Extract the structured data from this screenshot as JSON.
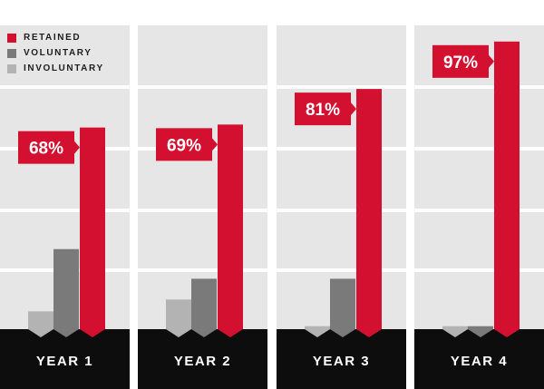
{
  "chart_data": {
    "type": "bar",
    "categories": [
      "YEAR 1",
      "YEAR 2",
      "YEAR 3",
      "YEAR 4"
    ],
    "series": [
      {
        "name": "RETAINED",
        "values": [
          68,
          69,
          81,
          97
        ]
      },
      {
        "name": "VOLUNTARY",
        "values": [
          27,
          17,
          17,
          1
        ]
      },
      {
        "name": "INVOLUNTARY",
        "values": [
          6,
          10,
          1,
          1
        ]
      }
    ],
    "data_labels": [
      "68%",
      "69%",
      "81%",
      "97%"
    ],
    "ylim": [
      0,
      100
    ],
    "grid": true,
    "legend_position": "top-left"
  },
  "legend": [
    {
      "label": "RETAINED",
      "color": "#d3102f"
    },
    {
      "label": "VOLUNTARY",
      "color": "#7a7a7a"
    },
    {
      "label": "INVOLUNTARY",
      "color": "#b3b3b3"
    }
  ],
  "colors": {
    "panel": "#e6e6e7",
    "footer": "#0d0d0d",
    "retained": "#d3102f",
    "voluntary": "#7a7a7a",
    "involuntary": "#b3b3b3"
  }
}
